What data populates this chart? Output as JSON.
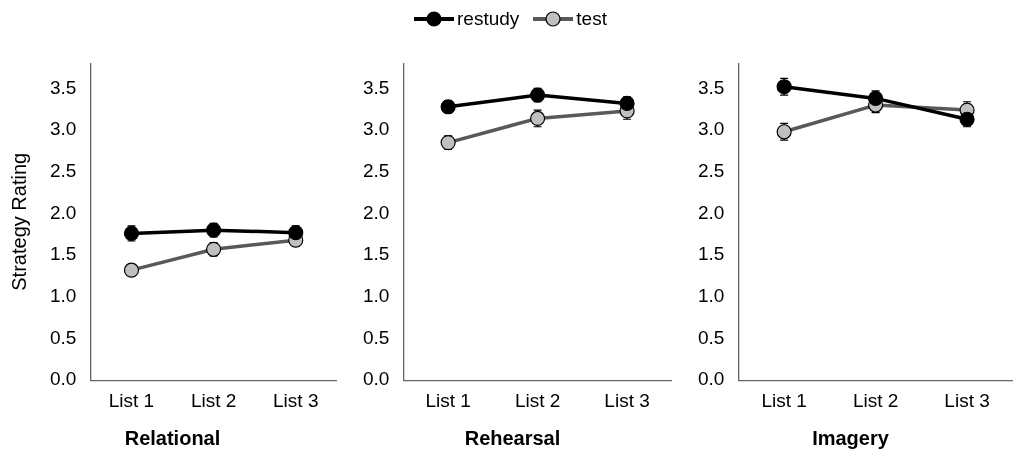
{
  "chart_data": [
    {
      "type": "line",
      "title": "Relational",
      "ylabel": "Strategy Rating",
      "categories": [
        "List 1",
        "List 2",
        "List 3"
      ],
      "ylim": [
        0,
        3.8
      ],
      "yticks": [
        {
          "value": 0,
          "label": "0.0"
        },
        {
          "value": 0.5,
          "label": "0.5"
        },
        {
          "value": 1,
          "label": "1.0"
        },
        {
          "value": 1.5,
          "label": "1.5"
        },
        {
          "value": 2,
          "label": "2.0"
        },
        {
          "value": 2.5,
          "label": "2.5"
        },
        {
          "value": 3,
          "label": "3.0"
        },
        {
          "value": 3.5,
          "label": "3.5"
        }
      ],
      "grid": false,
      "legend": "top",
      "marker": "circle",
      "line_style": "solid",
      "series": [
        {
          "name": "restudy",
          "color": "#000000",
          "values": [
            1.76,
            1.8,
            1.77
          ],
          "errors": [
            0.09,
            0.08,
            0.08
          ]
        },
        {
          "name": "test",
          "color": "#c0c0c0",
          "values": [
            1.32,
            1.57,
            1.68
          ],
          "errors": [
            0.07,
            0.08,
            0.07
          ]
        }
      ]
    },
    {
      "type": "line",
      "title": "Rehearsal",
      "categories": [
        "List 1",
        "List 2",
        "List 3"
      ],
      "ylim": [
        0,
        3.8
      ],
      "yticks": [
        {
          "value": 0,
          "label": "0.0"
        },
        {
          "value": 0.5,
          "label": "0.5"
        },
        {
          "value": 1,
          "label": "1.0"
        },
        {
          "value": 1.5,
          "label": "1.5"
        },
        {
          "value": 2,
          "label": "2.0"
        },
        {
          "value": 2.5,
          "label": "2.5"
        },
        {
          "value": 3,
          "label": "3.0"
        },
        {
          "value": 3.5,
          "label": "3.5"
        }
      ],
      "grid": false,
      "marker": "circle",
      "line_style": "solid",
      "series": [
        {
          "color": "#000000",
          "values": [
            3.28,
            3.42,
            3.32
          ],
          "errors": [
            0.07,
            0.08,
            0.08
          ]
        },
        {
          "color": "#c0c0c0",
          "values": [
            2.85,
            3.14,
            3.23
          ],
          "errors": [
            0.08,
            0.1,
            0.1
          ]
        }
      ]
    },
    {
      "type": "line",
      "title": "Imagery",
      "categories": [
        "List 1",
        "List 2",
        "List 3"
      ],
      "ylim": [
        0,
        3.8
      ],
      "yticks": [
        {
          "value": 0,
          "label": "0.0"
        },
        {
          "value": 0.5,
          "label": "0.5"
        },
        {
          "value": 1,
          "label": "1.0"
        },
        {
          "value": 1.5,
          "label": "1.5"
        },
        {
          "value": 2,
          "label": "2.0"
        },
        {
          "value": 2.5,
          "label": "2.5"
        },
        {
          "value": 3,
          "label": "3.0"
        },
        {
          "value": 3.5,
          "label": "3.5"
        }
      ],
      "grid": false,
      "marker": "circle",
      "line_style": "solid",
      "series": [
        {
          "color": "#000000",
          "values": [
            3.52,
            3.38,
            3.13
          ],
          "errors": [
            0.1,
            0.09,
            0.09
          ]
        },
        {
          "color": "#c0c0c0",
          "values": [
            2.98,
            3.3,
            3.24
          ],
          "errors": [
            0.1,
            0.09,
            0.1
          ]
        }
      ]
    }
  ]
}
